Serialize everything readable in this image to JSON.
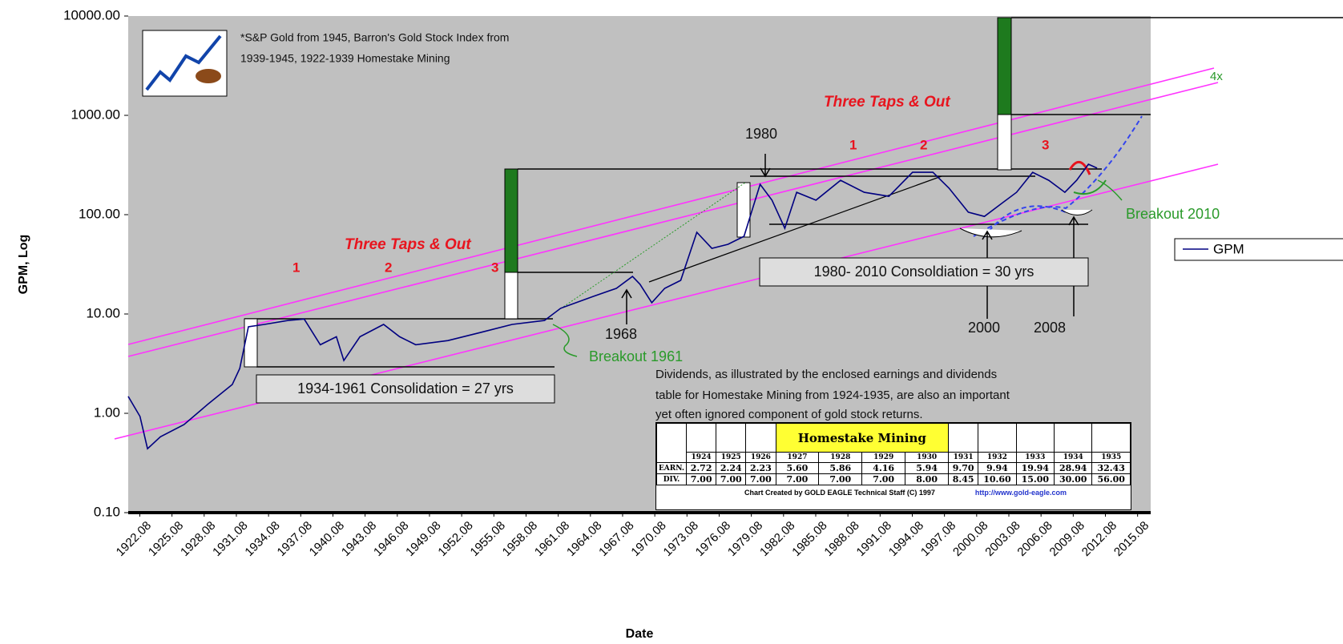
{
  "chart_data": {
    "type": "line",
    "y_label": "GPM, Log",
    "x_label": "Date",
    "log_scale": true,
    "xlim": [
      1921,
      2016.3
    ],
    "ylim": [
      0.1,
      10000
    ],
    "yticks": [
      {
        "value": 0.1,
        "label": "0.10"
      },
      {
        "value": 1,
        "label": "1.00"
      },
      {
        "value": 10,
        "label": "10.00"
      },
      {
        "value": 100,
        "label": "100.00"
      },
      {
        "value": 1000,
        "label": "1000.00"
      },
      {
        "value": 10000,
        "label": "10000.00"
      }
    ],
    "xticks": [
      1922.08,
      1925.08,
      1928.08,
      1931.08,
      1934.08,
      1937.08,
      1940.08,
      1943.08,
      1946.08,
      1949.08,
      1952.08,
      1955.08,
      1958.08,
      1961.08,
      1964.08,
      1967.08,
      1970.08,
      1973.08,
      1976.08,
      1979.08,
      1982.08,
      1985.08,
      1988.08,
      1991.08,
      1994.08,
      1997.08,
      2000.08,
      2003.08,
      2006.08,
      2009.08,
      2012.08,
      2015.08
    ],
    "series": [
      {
        "name": "GPM",
        "color": "#000080",
        "x": [
          1921.0,
          1922.1,
          1922.8,
          1924.0,
          1926.2,
          1928.4,
          1930.7,
          1931.4,
          1932.2,
          1933.7,
          1935.9,
          1937.4,
          1938.9,
          1940.4,
          1941.1,
          1942.6,
          1944.8,
          1946.3,
          1947.8,
          1950.8,
          1953.8,
          1956.8,
          1959.8,
          1961.3,
          1964.3,
          1966.5,
          1968.0,
          1968.7,
          1969.8,
          1971.0,
          1972.5,
          1974.0,
          1975.4,
          1976.9,
          1978.4,
          1979.9,
          1981.0,
          1982.2,
          1983.3,
          1985.1,
          1987.4,
          1989.6,
          1991.9,
          1994.1,
          1996.0,
          1997.5,
          1999.3,
          2000.8,
          2002.3,
          2003.8,
          2005.3,
          2006.8,
          2008.3,
          2009.4,
          2010.5,
          2011.3
        ],
        "values": [
          1.48,
          0.93,
          0.44,
          0.58,
          0.77,
          1.23,
          1.95,
          2.83,
          7.43,
          7.85,
          8.6,
          8.9,
          4.9,
          5.9,
          3.4,
          5.9,
          7.85,
          5.9,
          4.9,
          5.4,
          6.5,
          7.85,
          8.6,
          11.4,
          15.0,
          18.1,
          23.9,
          19.9,
          13.0,
          18.1,
          21.8,
          66.5,
          45.8,
          50.3,
          60.6,
          202,
          140,
          72.9,
          168,
          140,
          222,
          168,
          153,
          267,
          267,
          185,
          106,
          96,
          127,
          168,
          267,
          222,
          168,
          222,
          322,
          294
        ]
      }
    ],
    "annotations": [
      "*S&P Gold from 1945, Barron's Gold Stock Index from",
      "1939-1945, 1922-1939 Homestake Mining",
      "Three Taps & Out",
      "Three Taps & Out",
      "1980",
      "1",
      "2",
      "3",
      "1",
      "2",
      "3",
      "4x",
      "Breakout 2010",
      "1980- 2010 Consoldiation = 30 yrs",
      "1934-1961 Consolidation = 27 yrs",
      "1968",
      "Breakout 1961",
      "2000",
      "2008",
      "Dividends, as illustrated by the enclosed earnings and dividends",
      "table for Homestake Mining from 1924-1935, are also an important",
      "yet often ignored component of gold stock returns."
    ]
  },
  "table": {
    "title": "Homestake Mining",
    "years": [
      "1924",
      "1925",
      "1926",
      "1927",
      "1928",
      "1929",
      "1930",
      "1931",
      "1932",
      "1933",
      "1934",
      "1935"
    ],
    "rows": [
      {
        "label": "EARN.",
        "values": [
          "2.72",
          "2.24",
          "2.23",
          "5.60",
          "5.86",
          "4.16",
          "5.94",
          "9.70",
          "9.94",
          "19.94",
          "28.94",
          "32.43"
        ]
      },
      {
        "label": "DIV.",
        "values": [
          "7.00",
          "7.00",
          "7.00",
          "7.00",
          "7.00",
          "7.00",
          "8.00",
          "8.45",
          "10.60",
          "15.00",
          "30.00",
          "56.00"
        ]
      }
    ],
    "credit": "Chart Created by GOLD EAGLE Technical Staff (C) 1997",
    "url": "http://www.gold-eagle.com"
  }
}
